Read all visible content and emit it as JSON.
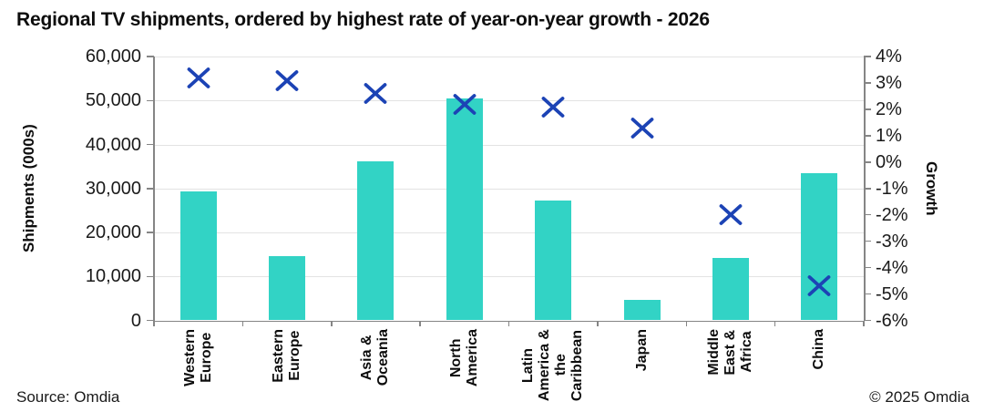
{
  "title": "Regional TV shipments, ordered by highest rate of year-on-year growth - 2026",
  "footer": {
    "source": "Source: Omdia",
    "copyright": "© 2025 Omdia"
  },
  "chart_data": {
    "type": "bar",
    "title": "Regional TV shipments, ordered by highest rate of year-on-year growth - 2026",
    "categories": [
      "Western Europe",
      "Eastern Europe",
      "Asia & Oceania",
      "North America",
      "Latin America & the Caribbean",
      "Japan",
      "Middle East & Africa",
      "China"
    ],
    "category_label_lines": [
      [
        "Western",
        "Europe"
      ],
      [
        "Eastern",
        "Europe"
      ],
      [
        "Asia &",
        "Oceania"
      ],
      [
        "North",
        "America"
      ],
      [
        "Latin",
        "America &",
        "the",
        "Caribbean"
      ],
      [
        "Japan"
      ],
      [
        "Middle",
        "East &",
        "Africa"
      ],
      [
        "China"
      ]
    ],
    "series": [
      {
        "name": "Shipments (000s)",
        "type": "bar",
        "axis": "left",
        "color": "#32d3c5",
        "values": [
          29300,
          14700,
          36100,
          50500,
          27300,
          4700,
          14200,
          33400
        ]
      },
      {
        "name": "Growth",
        "type": "scatter",
        "marker": "x",
        "axis": "right",
        "color": "#1c43b5",
        "values": [
          3.2,
          3.1,
          2.6,
          2.2,
          2.1,
          1.3,
          -2.0,
          -4.7
        ]
      }
    ],
    "left_axis": {
      "label": "Shipments (000s)",
      "min": 0,
      "max": 60000,
      "step": 10000,
      "tick_labels": [
        "60,000",
        "50,000",
        "40,000",
        "30,000",
        "20,000",
        "10,000",
        "0"
      ]
    },
    "right_axis": {
      "label": "Growth",
      "min": -6,
      "max": 4,
      "step": 1,
      "tick_labels": [
        "4%",
        "3%",
        "2%",
        "1%",
        "0%",
        "-1%",
        "-2%",
        "-3%",
        "-4%",
        "-5%",
        "-6%"
      ]
    },
    "gridlines": true,
    "legend": "none"
  }
}
